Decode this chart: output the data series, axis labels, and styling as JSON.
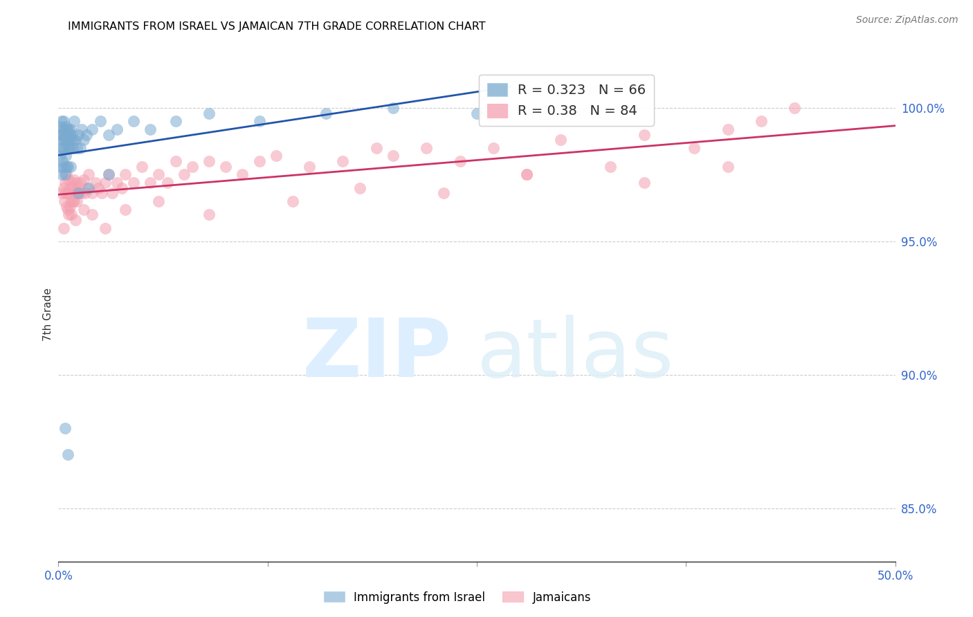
{
  "title": "IMMIGRANTS FROM ISRAEL VS JAMAICAN 7TH GRADE CORRELATION CHART",
  "source": "Source: ZipAtlas.com",
  "ylabel": "7th Grade",
  "xlim": [
    0.0,
    50.0
  ],
  "ylim": [
    83.0,
    101.5
  ],
  "ytick_positions": [
    85.0,
    90.0,
    95.0,
    100.0
  ],
  "ytick_labels": [
    "85.0%",
    "90.0%",
    "95.0%",
    "100.0%"
  ],
  "xtick_positions": [
    0.0,
    12.5,
    25.0,
    37.5,
    50.0
  ],
  "xtick_labels": [
    "0.0%",
    "",
    "",
    "",
    "50.0%"
  ],
  "blue_R": 0.323,
  "blue_N": 66,
  "pink_R": 0.38,
  "pink_N": 84,
  "blue_color": "#7AAAD0",
  "pink_color": "#F4A0B0",
  "blue_line_color": "#2255AA",
  "pink_line_color": "#CC3366",
  "blue_points_x": [
    0.08,
    0.1,
    0.12,
    0.15,
    0.15,
    0.18,
    0.2,
    0.2,
    0.22,
    0.25,
    0.25,
    0.28,
    0.3,
    0.3,
    0.32,
    0.35,
    0.35,
    0.38,
    0.4,
    0.4,
    0.42,
    0.45,
    0.45,
    0.48,
    0.5,
    0.5,
    0.52,
    0.55,
    0.55,
    0.58,
    0.6,
    0.62,
    0.65,
    0.68,
    0.7,
    0.72,
    0.75,
    0.78,
    0.8,
    0.85,
    0.9,
    0.95,
    1.0,
    1.1,
    1.2,
    1.3,
    1.4,
    1.5,
    1.7,
    2.0,
    2.5,
    3.0,
    3.5,
    4.5,
    5.5,
    7.0,
    9.0,
    12.0,
    16.0,
    20.0,
    25.0,
    0.4,
    0.55,
    1.2,
    1.8,
    3.0
  ],
  "blue_points_y": [
    98.5,
    99.0,
    98.2,
    99.3,
    97.8,
    98.8,
    99.5,
    97.5,
    98.5,
    99.2,
    98.0,
    99.0,
    98.8,
    97.8,
    99.5,
    99.2,
    98.5,
    99.0,
    98.8,
    97.5,
    99.3,
    99.0,
    98.2,
    98.8,
    99.0,
    97.8,
    99.2,
    98.5,
    97.8,
    99.0,
    98.5,
    99.2,
    98.8,
    99.0,
    98.5,
    97.8,
    99.2,
    98.8,
    99.0,
    98.5,
    98.8,
    99.5,
    98.8,
    98.5,
    99.0,
    98.5,
    99.2,
    98.8,
    99.0,
    99.2,
    99.5,
    99.0,
    99.2,
    99.5,
    99.2,
    99.5,
    99.8,
    99.5,
    99.8,
    100.0,
    99.8,
    88.0,
    87.0,
    96.8,
    97.0,
    97.5
  ],
  "pink_points_x": [
    0.2,
    0.3,
    0.35,
    0.4,
    0.45,
    0.48,
    0.5,
    0.55,
    0.58,
    0.6,
    0.65,
    0.68,
    0.7,
    0.75,
    0.78,
    0.8,
    0.85,
    0.9,
    0.92,
    0.95,
    1.0,
    1.05,
    1.1,
    1.15,
    1.2,
    1.3,
    1.4,
    1.5,
    1.6,
    1.7,
    1.8,
    2.0,
    2.2,
    2.4,
    2.6,
    2.8,
    3.0,
    3.2,
    3.5,
    3.8,
    4.0,
    4.5,
    5.0,
    5.5,
    6.0,
    6.5,
    7.0,
    7.5,
    8.0,
    9.0,
    10.0,
    11.0,
    12.0,
    13.0,
    15.0,
    17.0,
    19.0,
    20.0,
    22.0,
    24.0,
    26.0,
    28.0,
    30.0,
    33.0,
    35.0,
    38.0,
    40.0,
    42.0,
    44.0,
    0.3,
    0.6,
    1.0,
    1.5,
    2.0,
    2.8,
    4.0,
    6.0,
    9.0,
    14.0,
    18.0,
    23.0,
    28.0,
    35.0,
    40.0
  ],
  "pink_points_y": [
    96.8,
    97.0,
    96.5,
    97.2,
    96.8,
    96.3,
    97.5,
    96.8,
    96.2,
    97.3,
    96.8,
    96.3,
    97.0,
    96.5,
    96.0,
    97.2,
    96.5,
    97.0,
    96.5,
    97.3,
    96.8,
    97.2,
    96.5,
    97.0,
    96.8,
    97.2,
    96.8,
    97.3,
    96.8,
    97.0,
    97.5,
    96.8,
    97.2,
    97.0,
    96.8,
    97.2,
    97.5,
    96.8,
    97.2,
    97.0,
    97.5,
    97.2,
    97.8,
    97.2,
    97.5,
    97.2,
    98.0,
    97.5,
    97.8,
    98.0,
    97.8,
    97.5,
    98.0,
    98.2,
    97.8,
    98.0,
    98.5,
    98.2,
    98.5,
    98.0,
    98.5,
    97.5,
    98.8,
    97.8,
    99.0,
    98.5,
    99.2,
    99.5,
    100.0,
    95.5,
    96.0,
    95.8,
    96.2,
    96.0,
    95.5,
    96.2,
    96.5,
    96.0,
    96.5,
    97.0,
    96.8,
    97.5,
    97.2,
    97.8
  ]
}
